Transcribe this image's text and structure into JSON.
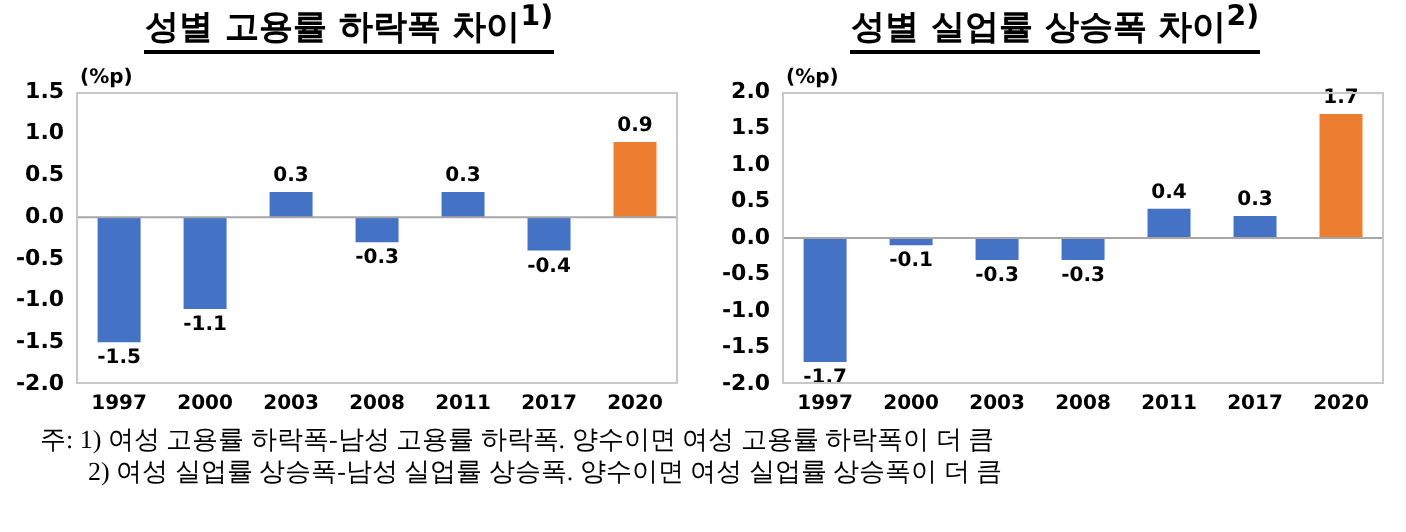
{
  "chart_data": [
    {
      "type": "bar",
      "title": "성별 고용률 하락폭 차이$^{1)}$",
      "ylabel": "(%p)",
      "categories": [
        "1997",
        "2000",
        "2003",
        "2008",
        "2011",
        "2017",
        "2020"
      ],
      "values": [
        -1.5,
        -1.1,
        0.3,
        -0.3,
        0.3,
        -0.4,
        0.9
      ],
      "colors": [
        "#4472c4",
        "#4472c4",
        "#4472c4",
        "#4472c4",
        "#4472c4",
        "#4472c4",
        "#ed7d31"
      ],
      "ylim": [
        -2,
        1.5
      ],
      "yticks": [
        {
          "value": -2,
          "label": "-2.0"
        },
        -1.5,
        {
          "value": -1,
          "label": "-1.0"
        },
        -0.5,
        {
          "value": 0,
          "label": "0.0"
        },
        0.5,
        {
          "value": 1,
          "label": "1.0"
        },
        1.5
      ],
      "data_labels": true,
      "legend": false,
      "annotations": [
        "주: 1) 여성 고용률 하락폭-남성 고용률 하락폭. 양수이면 여성 고용률 하락폭이 더 큼"
      ]
    },
    {
      "type": "bar",
      "title": "성별 실업률 상승폭 차이$^{2)}$",
      "ylabel": "(%p)",
      "categories": [
        "1997",
        "2000",
        "2003",
        "2008",
        "2011",
        "2017",
        "2020"
      ],
      "values": [
        -1.7,
        -0.1,
        -0.3,
        -0.3,
        0.4,
        0.3,
        1.7
      ],
      "colors": [
        "#4472c4",
        "#4472c4",
        "#4472c4",
        "#4472c4",
        "#4472c4",
        "#4472c4",
        "#ed7d31"
      ],
      "ylim": [
        -2,
        2
      ],
      "yticks": [
        {
          "value": -2,
          "label": "-2.0"
        },
        -1.5,
        {
          "value": -1,
          "label": "-1.0"
        },
        -0.5,
        {
          "value": 0,
          "label": "0.0"
        },
        0.5,
        {
          "value": 1,
          "label": "1.0"
        },
        1.5,
        {
          "value": 2,
          "label": "2.0"
        }
      ],
      "data_labels": true,
      "legend": false,
      "annotations": [
        "2) 여성 실업률 상승폭-남성 실업률 상승폭. 양수이면 여성 실업률 상승폭이 더 큼"
      ]
    }
  ]
}
